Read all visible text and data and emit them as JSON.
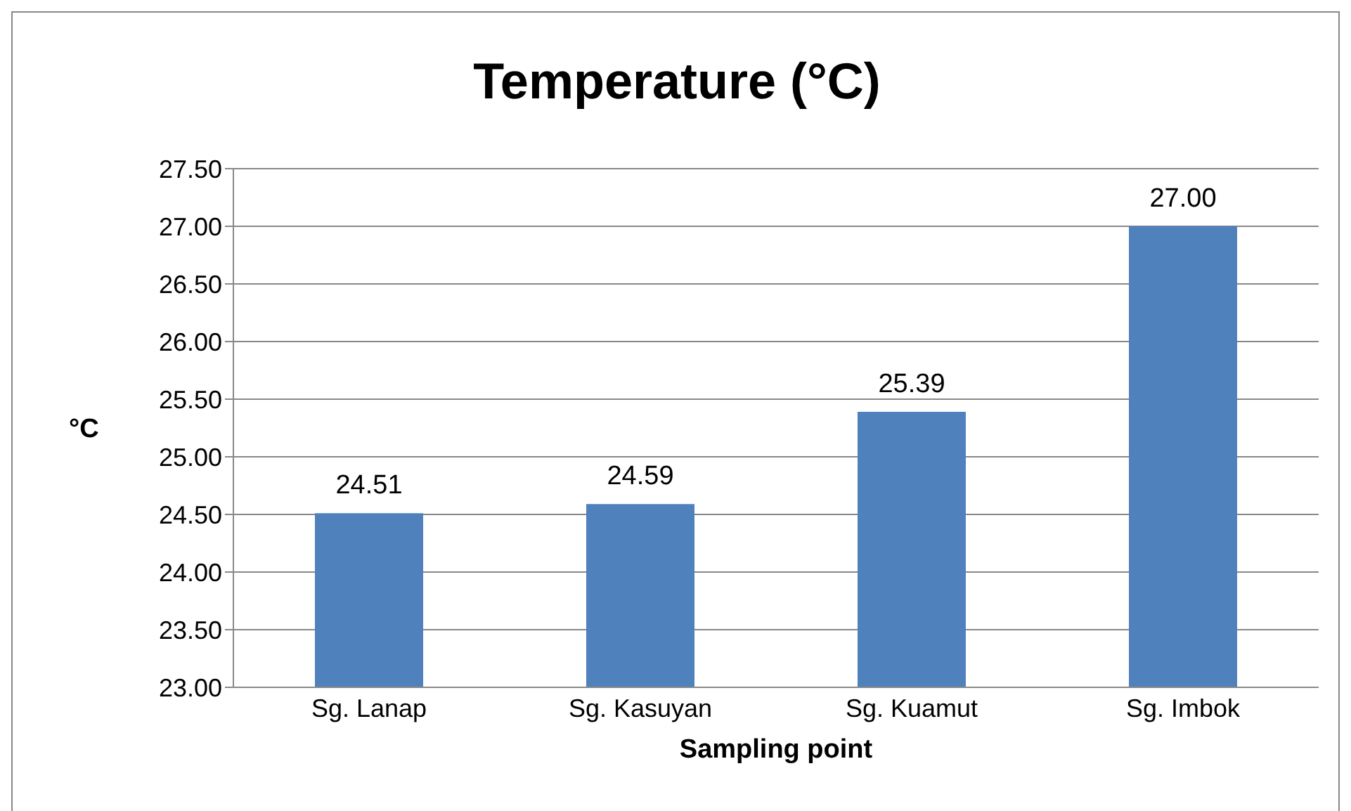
{
  "chart_data": {
    "type": "bar",
    "title": "Temperature (°C)",
    "xlabel": "Sampling point",
    "ylabel": "°C",
    "categories": [
      "Sg. Lanap",
      "Sg. Kasuyan",
      "Sg. Kuamut",
      "Sg. Imbok"
    ],
    "values": [
      24.51,
      24.59,
      25.39,
      27.0
    ],
    "value_labels": [
      "24.51",
      "24.59",
      "25.39",
      "27.00"
    ],
    "color": "#4f81bd",
    "ylim": [
      23,
      27.5
    ],
    "yticks": [
      {
        "value": 23,
        "label": "23.00"
      },
      {
        "value": 23.5,
        "label": "23.50"
      },
      {
        "value": 24,
        "label": "24.00"
      },
      {
        "value": 24.5,
        "label": "24.50"
      },
      {
        "value": 25,
        "label": "25.00"
      },
      {
        "value": 25.5,
        "label": "25.50"
      },
      {
        "value": 26,
        "label": "26.00"
      },
      {
        "value": 26.5,
        "label": "26.50"
      },
      {
        "value": 27,
        "label": "27.00"
      },
      {
        "value": 27.5,
        "label": "27.50"
      }
    ],
    "grid": "y"
  }
}
